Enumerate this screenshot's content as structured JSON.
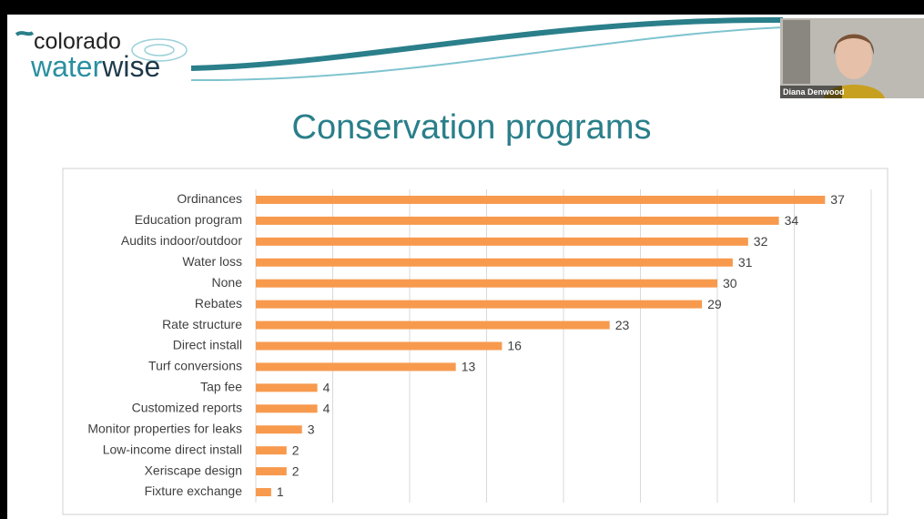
{
  "meeting": {
    "participant_name": "Diana Denwood"
  },
  "slide": {
    "logo": {
      "top": "colorado",
      "water": "water",
      "wise": "wise"
    }
  },
  "chart_data": {
    "type": "bar",
    "orientation": "horizontal",
    "title": "Conservation programs",
    "categories": [
      "Ordinances",
      "Education program",
      "Audits indoor/outdoor",
      "Water loss",
      "None",
      "Rebates",
      "Rate structure",
      "Direct install",
      "Turf conversions",
      "Tap fee",
      "Customized reports",
      "Monitor properties for leaks",
      "Low-income direct install",
      "Xeriscape design",
      "Fixture exchange"
    ],
    "values": [
      37,
      34,
      32,
      31,
      30,
      29,
      23,
      16,
      13,
      4,
      4,
      3,
      2,
      2,
      1
    ],
    "color": "#f79a4e",
    "xlim": [
      0,
      40
    ],
    "xticks": [
      0,
      5,
      10,
      15,
      20,
      25,
      30,
      35,
      40
    ],
    "grid": true
  }
}
